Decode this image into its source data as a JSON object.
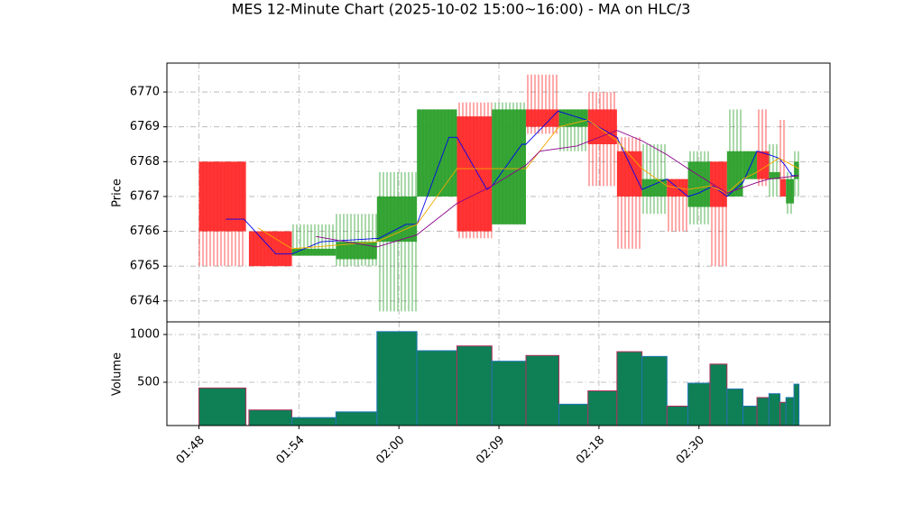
{
  "chart_data": {
    "type": "candlestick",
    "title": "MES 12-Minute Chart (2025-10-02 15:00~16:00) - MA on HLC/3",
    "ylabel": "Price",
    "volume_label": "Volume",
    "xlim": [
      -3.2,
      63.1
    ],
    "xticks": [
      {
        "value": 0,
        "label": "01:48"
      },
      {
        "value": 10,
        "label": "01:54"
      },
      {
        "value": 20,
        "label": "02:00"
      },
      {
        "value": 30,
        "label": "02:09"
      },
      {
        "value": 40,
        "label": "02:18"
      },
      {
        "value": 50,
        "label": "02:30"
      }
    ],
    "ylim": [
      6763.4,
      6770.83
    ],
    "yticks": [
      6764,
      6765,
      6766,
      6767,
      6768,
      6769,
      6770
    ],
    "volume_ylim": [
      47,
      1132
    ],
    "volume_yticks": [
      500,
      1000
    ],
    "grid": true,
    "up_color": "#2ca02c",
    "down_color": "#ff2a2a",
    "volume_color": "#0f7f55",
    "candles": {
      "x_start": [
        0,
        5,
        9.3,
        13.7,
        17.8,
        21.8,
        25.8,
        29.3,
        32.7,
        36,
        38.9,
        41.8,
        44.3,
        46.8,
        48.9,
        51.1,
        52.8,
        54.4,
        55.8,
        57,
        58.1,
        58.7,
        59.5
      ],
      "x_end": [
        4.7,
        9.3,
        13.7,
        17.8,
        21.8,
        25.8,
        29.3,
        32.7,
        36,
        38.9,
        41.8,
        44.3,
        46.8,
        48.9,
        51.1,
        52.8,
        54.4,
        55.8,
        57,
        58.1,
        58.7,
        59.5,
        60
      ],
      "open": [
        6768,
        6766,
        6765.3,
        6765.2,
        6765.7,
        6767,
        6769.3,
        6766.2,
        6769.5,
        6769,
        6769.5,
        6768.3,
        6767,
        6767.5,
        6766.7,
        6768,
        6767,
        6767.5,
        6768.3,
        6767.5,
        6767.5,
        6766.8,
        6767.5
      ],
      "high": [
        6768,
        6766,
        6766.2,
        6766.5,
        6767.7,
        6769.5,
        6769.7,
        6769.7,
        6770.5,
        6769.5,
        6770,
        6768.7,
        6768.5,
        6767.5,
        6768.3,
        6768,
        6769.5,
        6768.3,
        6769.5,
        6768.5,
        6769.2,
        6767.7,
        6768.3
      ],
      "low": [
        6765,
        6765,
        6765.3,
        6765,
        6763.7,
        6767,
        6765.8,
        6766.2,
        6768.8,
        6768.3,
        6767.3,
        6765.5,
        6766.5,
        6766,
        6766.2,
        6765,
        6767,
        6767.5,
        6767.3,
        6767,
        6767,
        6766.5,
        6767
      ],
      "close": [
        6766,
        6765,
        6765.5,
        6765.7,
        6767,
        6769.5,
        6766,
        6769.5,
        6769,
        6769.5,
        6768.5,
        6767,
        6767.5,
        6767,
        6768,
        6766.7,
        6768.3,
        6768.3,
        6767.5,
        6767.7,
        6767,
        6767.5,
        6768
      ],
      "volume": [
        440,
        210,
        130,
        190,
        1030,
        830,
        880,
        720,
        780,
        270,
        410,
        820,
        770,
        250,
        490,
        690,
        430,
        250,
        340,
        380,
        290,
        340,
        480
      ]
    },
    "lines": [
      {
        "color": "#0000ee",
        "x": [
          2.7,
          4.5,
          7.7,
          9.3,
          12.2,
          18,
          20.7,
          21.8,
          25,
          25.8,
          28.8,
          29.3,
          32.3,
          32.7,
          35.9,
          38.7,
          41.8,
          44.3,
          46.8,
          48.9,
          50,
          51.4,
          52.8,
          54.4,
          55.8,
          57,
          58,
          58.6,
          59.3,
          59.9
        ],
        "values": [
          6766.35,
          6766.35,
          6765.35,
          6765.35,
          6765.7,
          6765.8,
          6766.2,
          6766.2,
          6768.7,
          6768.7,
          6767.2,
          6767.3,
          6768.5,
          6768.5,
          6769.45,
          6769.2,
          6768.7,
          6767.2,
          6767.5,
          6767,
          6767.1,
          6767.3,
          6767,
          6767.4,
          6768.3,
          6768.2,
          6768.1,
          6767.9,
          6767.6,
          6767.6
        ]
      },
      {
        "color": "#f5a800",
        "x": [
          5.9,
          9.3,
          13.7,
          17.8,
          21.8,
          25.8,
          29.3,
          32.7,
          36,
          38.9,
          41.8,
          44.3,
          46.8,
          48.9,
          51.1,
          52.8,
          54.4,
          55.8,
          58,
          60
        ],
        "values": [
          6766.1,
          6765.5,
          6765.6,
          6765.7,
          6766.2,
          6767.8,
          6767.8,
          6767.8,
          6769,
          6769.2,
          6768.6,
          6767.8,
          6767.3,
          6767.2,
          6767.3,
          6767.1,
          6767.5,
          6767.7,
          6768.1,
          6767.8
        ]
      },
      {
        "color": "#8b008b",
        "x": [
          11.7,
          17.8,
          21.8,
          25.8,
          29.3,
          32.7,
          34.1,
          37.8,
          41.8,
          44.3,
          46.8,
          48.9,
          52.8,
          55.8,
          57,
          60
        ],
        "values": [
          6765.85,
          6765.55,
          6765.9,
          6766.8,
          6767.3,
          6767.9,
          6768.3,
          6768.45,
          6768.9,
          6768.6,
          6768.2,
          6767.8,
          6767.1,
          6767.4,
          6767.5,
          6767.6
        ]
      }
    ]
  }
}
